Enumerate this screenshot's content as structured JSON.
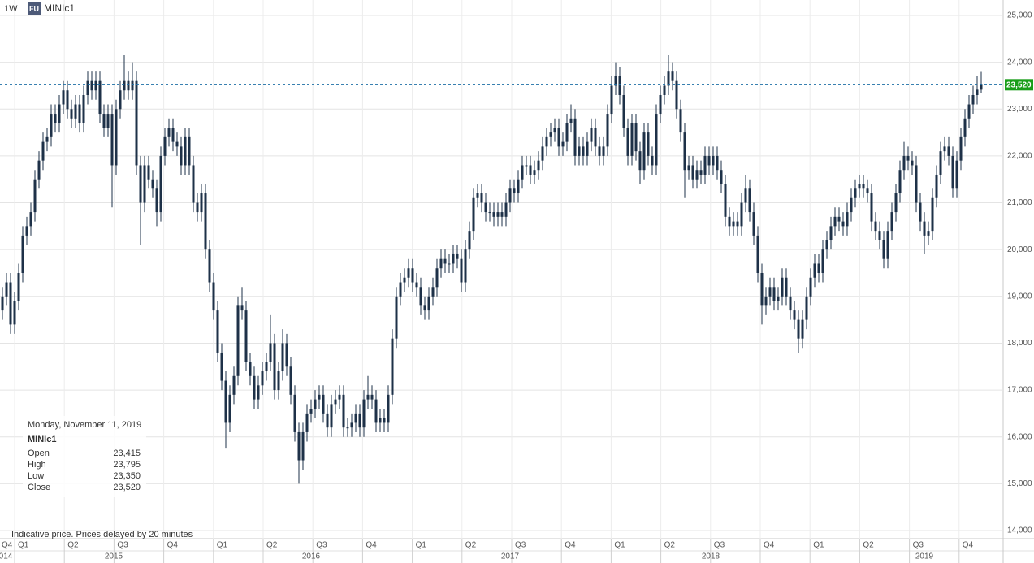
{
  "chart_data": {
    "type": "candlestick",
    "header": {
      "interval": "1W",
      "badge": "FU",
      "symbol": "MINIc1"
    },
    "note": "Indicative price. Prices delayed by 20 minutes",
    "color": "#1e3148",
    "grid": true,
    "ylim": [
      13826,
      25330
    ],
    "yticks": [
      {
        "value": 14000,
        "label": "14,000"
      },
      {
        "value": 15000,
        "label": "15,000"
      },
      {
        "value": 16000,
        "label": "16,000"
      },
      {
        "value": 17000,
        "label": "17,000"
      },
      {
        "value": 18000,
        "label": "18,000"
      },
      {
        "value": 19000,
        "label": "19,000"
      },
      {
        "value": 20000,
        "label": "20,000"
      },
      {
        "value": 21000,
        "label": "21,000"
      },
      {
        "value": 22000,
        "label": "22,000"
      },
      {
        "value": 23000,
        "label": "23,000"
      },
      {
        "value": 24000,
        "label": "24,000"
      },
      {
        "value": 25000,
        "label": "25,000"
      }
    ],
    "xlim": [
      -0.6,
      246.4
    ],
    "xticks": [
      {
        "value": -1,
        "label": "Q4"
      },
      {
        "value": 3,
        "label": "Q1"
      },
      {
        "value": 15.24,
        "label": "Q2"
      },
      {
        "value": 27.48,
        "label": "Q3"
      },
      {
        "value": 39.72,
        "label": "Q4"
      },
      {
        "value": 51.96,
        "label": "Q1"
      },
      {
        "value": 64.2,
        "label": "Q2"
      },
      {
        "value": 76.44,
        "label": "Q3"
      },
      {
        "value": 88.68,
        "label": "Q4"
      },
      {
        "value": 100.92,
        "label": "Q1"
      },
      {
        "value": 113.16,
        "label": "Q2"
      },
      {
        "value": 125.4,
        "label": "Q3"
      },
      {
        "value": 137.64,
        "label": "Q4"
      },
      {
        "value": 149.88,
        "label": "Q1"
      },
      {
        "value": 162.12,
        "label": "Q2"
      },
      {
        "value": 174.36,
        "label": "Q3"
      },
      {
        "value": 186.6,
        "label": "Q4"
      },
      {
        "value": 198.84,
        "label": "Q1"
      },
      {
        "value": 211.08,
        "label": "Q2"
      },
      {
        "value": 223.32,
        "label": "Q3"
      },
      {
        "value": 235.56,
        "label": "Q4"
      }
    ],
    "year_ticks": [
      {
        "value": 0.8,
        "label": "014"
      },
      {
        "value": 27.4,
        "label": "2015"
      },
      {
        "value": 76,
        "label": "2016"
      },
      {
        "value": 125,
        "label": "2017"
      },
      {
        "value": 174.4,
        "label": "2018"
      },
      {
        "value": 227,
        "label": "2019"
      }
    ],
    "last_price": {
      "value": 23520,
      "label": "23,520",
      "color": "#1a9e1a"
    },
    "info": {
      "date": "Monday, November 11, 2019",
      "symbol": "MINIc1",
      "rows": [
        [
          "Open",
          "23,415"
        ],
        [
          "High",
          "23,795"
        ],
        [
          "Low",
          "23,350"
        ],
        [
          "Close",
          "23,520"
        ]
      ]
    },
    "open": [
      18700,
      19000,
      19300,
      18400,
      18900,
      19500,
      20300,
      20500,
      20800,
      21500,
      21900,
      22300,
      22400,
      22900,
      22700,
      23100,
      23400,
      23000,
      22800,
      23100,
      22700,
      23300,
      23600,
      23400,
      23600,
      22900,
      22600,
      22900,
      21800,
      23000,
      23400,
      23600,
      23400,
      23600,
      21800,
      21000,
      21800,
      21500,
      21300,
      20800,
      22000,
      22400,
      22600,
      22300,
      22200,
      21800,
      22400,
      21800,
      21000,
      20800,
      21200,
      20000,
      19300,
      18700,
      17800,
      17200,
      16300,
      16900,
      17300,
      18800,
      18700,
      17600,
      17300,
      16800,
      17100,
      17400,
      17600,
      18000,
      17000,
      17400,
      18000,
      17500,
      16900,
      16100,
      15500,
      16100,
      16500,
      16600,
      16800,
      16900,
      16500,
      16200,
      16700,
      16800,
      16900,
      16200,
      16200,
      16300,
      16500,
      16200,
      16800,
      16900,
      16800,
      16300,
      16400,
      16300,
      16900,
      18100,
      19000,
      19300,
      19400,
      19600,
      19300,
      19200,
      18800,
      18700,
      19000,
      19200,
      19600,
      19800,
      19700,
      19700,
      19900,
      19800,
      19300,
      20000,
      20400,
      21100,
      21200,
      21000,
      20800,
      20800,
      20700,
      20800,
      20700,
      21000,
      21300,
      21200,
      21500,
      21800,
      21800,
      21600,
      21700,
      21900,
      22200,
      22400,
      22500,
      22600,
      22200,
      22300,
      22700,
      22800,
      22000,
      22200,
      22000,
      22300,
      22600,
      22200,
      22000,
      22200,
      22900,
      23500,
      23700,
      23300,
      22600,
      22000,
      22700,
      22100,
      21700,
      22500,
      22000,
      21800,
      22900,
      23300,
      23500,
      23800,
      23600,
      23000,
      22500,
      21700,
      21800,
      21500,
      21700,
      21600,
      22000,
      21800,
      22000,
      21700,
      21400,
      20700,
      20500,
      20600,
      20500,
      21000,
      21300,
      20800,
      20300,
      19500,
      18800,
      19000,
      19200,
      18900,
      19000,
      19400,
      19000,
      18700,
      18500,
      18100,
      18500,
      19000,
      19400,
      19700,
      19500,
      20000,
      20200,
      20500,
      20700,
      20600,
      20500,
      20800,
      21100,
      21300,
      21400,
      21300,
      21200,
      20600,
      20400,
      20200,
      19800,
      20400,
      20800,
      21200,
      21700,
      22000,
      21900,
      21800,
      21000,
      20600,
      20300,
      20400,
      21100,
      21600,
      22100,
      22200,
      22000,
      21300,
      21900,
      22400,
      22800,
      23100,
      23300,
      23415
    ],
    "high": [
      19200,
      19500,
      19500,
      19100,
      19700,
      20500,
      20700,
      21000,
      21700,
      22100,
      22500,
      22600,
      23100,
      23100,
      23300,
      23600,
      23600,
      23200,
      23300,
      23300,
      23500,
      23800,
      23800,
      23800,
      23800,
      23100,
      23100,
      23100,
      23200,
      23600,
      24150,
      23800,
      24000,
      23800,
      22000,
      22000,
      22000,
      21700,
      21500,
      22200,
      22600,
      22800,
      22800,
      22500,
      22400,
      22600,
      22600,
      22000,
      21200,
      21400,
      21400,
      20200,
      19500,
      18900,
      18000,
      17400,
      17100,
      17500,
      19000,
      19200,
      18900,
      17800,
      17500,
      17300,
      17600,
      17800,
      18600,
      18200,
      17600,
      18300,
      18200,
      17700,
      17100,
      16300,
      16300,
      16700,
      16800,
      17000,
      17100,
      17100,
      16700,
      16900,
      17000,
      17100,
      17100,
      16400,
      16500,
      16700,
      16700,
      17000,
      17300,
      17100,
      17000,
      16600,
      16600,
      17100,
      18300,
      19200,
      19500,
      19600,
      19800,
      19800,
      19500,
      19400,
      19000,
      19200,
      19400,
      19800,
      20000,
      20000,
      19900,
      20100,
      20100,
      20000,
      20200,
      20600,
      21300,
      21400,
      21400,
      21200,
      21000,
      21000,
      21000,
      21000,
      21200,
      21500,
      21500,
      21700,
      22000,
      22000,
      22000,
      21900,
      22100,
      22400,
      22600,
      22700,
      22800,
      22800,
      22500,
      22900,
      23100,
      23000,
      22400,
      22400,
      22500,
      22800,
      22800,
      22400,
      22400,
      23100,
      23700,
      24000,
      23900,
      23500,
      22800,
      22900,
      22900,
      22300,
      22700,
      22700,
      22200,
      23100,
      23500,
      23700,
      24150,
      24000,
      23800,
      23200,
      22700,
      22000,
      22000,
      21900,
      21900,
      22200,
      22200,
      22200,
      22200,
      21900,
      21600,
      20900,
      20800,
      20800,
      21200,
      21600,
      21500,
      21000,
      20500,
      19700,
      19200,
      19400,
      19400,
      19200,
      19600,
      19600,
      19200,
      18900,
      18700,
      18700,
      19200,
      19600,
      19900,
      19900,
      20200,
      20400,
      20700,
      20900,
      20900,
      20800,
      21000,
      21300,
      21500,
      21600,
      21600,
      21500,
      21400,
      20800,
      20600,
      20400,
      20600,
      21000,
      21400,
      21900,
      22300,
      22200,
      22100,
      22000,
      21200,
      20800,
      20600,
      21300,
      21800,
      22300,
      22400,
      22400,
      22200,
      22100,
      22600,
      23000,
      23300,
      23500,
      23700,
      23795
    ],
    "low": [
      18500,
      18800,
      18200,
      18200,
      18700,
      19300,
      20100,
      20300,
      20600,
      21300,
      21700,
      22100,
      22200,
      22500,
      22500,
      22900,
      22800,
      22600,
      22600,
      22500,
      22500,
      23100,
      23200,
      23200,
      22700,
      22400,
      22400,
      20900,
      21600,
      22800,
      23200,
      23200,
      23200,
      21600,
      20100,
      20800,
      21300,
      21100,
      20500,
      20600,
      21800,
      22200,
      22100,
      22000,
      21600,
      21600,
      21600,
      20800,
      20600,
      20600,
      19800,
      19100,
      18500,
      17600,
      17000,
      15750,
      16100,
      16700,
      17100,
      18500,
      17400,
      17100,
      16600,
      16600,
      16900,
      17200,
      17400,
      16800,
      16800,
      17200,
      17300,
      16700,
      15900,
      15000,
      15300,
      15900,
      16300,
      16400,
      16600,
      16300,
      16000,
      16000,
      16500,
      16600,
      16000,
      16000,
      16000,
      16100,
      16000,
      16000,
      16600,
      16600,
      16100,
      16100,
      16100,
      16100,
      16700,
      17900,
      18800,
      19100,
      19200,
      19100,
      19000,
      18600,
      18500,
      18500,
      18800,
      19000,
      19400,
      19500,
      19500,
      19500,
      19600,
      19100,
      19100,
      19800,
      20200,
      20900,
      20800,
      20600,
      20600,
      20500,
      20500,
      20500,
      20500,
      20800,
      21000,
      21000,
      21300,
      21600,
      21400,
      21400,
      21500,
      21700,
      22000,
      22200,
      22300,
      22000,
      22000,
      22100,
      22500,
      21800,
      21800,
      21800,
      21800,
      22100,
      22000,
      21800,
      21800,
      22000,
      22700,
      23300,
      23100,
      22400,
      21800,
      21800,
      21900,
      21400,
      21500,
      21800,
      21600,
      21600,
      22700,
      23100,
      23300,
      23400,
      22800,
      22300,
      21100,
      21500,
      21300,
      21300,
      21400,
      21400,
      21600,
      21600,
      21500,
      21200,
      20500,
      20300,
      20300,
      20300,
      20300,
      20800,
      20600,
      20100,
      19300,
      18400,
      18600,
      18800,
      18700,
      18700,
      18800,
      18800,
      18500,
      18300,
      17800,
      17900,
      18300,
      18800,
      19200,
      19300,
      19300,
      19800,
      20000,
      20300,
      20400,
      20300,
      20300,
      20600,
      20900,
      21100,
      21100,
      21000,
      20400,
      20200,
      20000,
      19600,
      19600,
      20200,
      20600,
      21000,
      21500,
      21700,
      21600,
      20800,
      20400,
      19900,
      20100,
      20200,
      20900,
      21400,
      21900,
      21800,
      21100,
      21100,
      21700,
      22200,
      22600,
      22900,
      23100,
      23350
    ],
    "close": [
      19000,
      19300,
      18400,
      18900,
      19500,
      20300,
      20500,
      20800,
      21500,
      21900,
      22300,
      22400,
      22900,
      22700,
      23100,
      23400,
      23000,
      22800,
      23100,
      22700,
      23300,
      23600,
      23400,
      23600,
      22900,
      22600,
      22900,
      21800,
      23000,
      23400,
      23600,
      23400,
      23600,
      21800,
      21000,
      21800,
      21500,
      21300,
      20800,
      22000,
      22400,
      22600,
      22300,
      22200,
      21800,
      22400,
      21800,
      21000,
      20800,
      21200,
      20000,
      19300,
      18700,
      17800,
      17200,
      16300,
      16900,
      17300,
      18800,
      18700,
      17600,
      17300,
      16800,
      17100,
      17400,
      17600,
      18000,
      17000,
      17400,
      18000,
      17500,
      16900,
      16100,
      15500,
      16100,
      16500,
      16600,
      16800,
      16900,
      16500,
      16200,
      16700,
      16800,
      16900,
      16200,
      16200,
      16300,
      16500,
      16200,
      16800,
      16900,
      16800,
      16300,
      16400,
      16300,
      16900,
      18100,
      19000,
      19300,
      19400,
      19600,
      19300,
      19200,
      18800,
      18700,
      19000,
      19200,
      19600,
      19800,
      19700,
      19700,
      19900,
      19800,
      19300,
      20000,
      20400,
      21100,
      21200,
      21000,
      20800,
      20800,
      20700,
      20800,
      20700,
      21000,
      21300,
      21200,
      21500,
      21800,
      21800,
      21600,
      21700,
      21900,
      22200,
      22400,
      22500,
      22600,
      22200,
      22300,
      22700,
      22800,
      22000,
      22200,
      22000,
      22300,
      22600,
      22200,
      22000,
      22200,
      22900,
      23500,
      23700,
      23300,
      22600,
      22000,
      22700,
      22100,
      21700,
      22500,
      22000,
      21800,
      22900,
      23300,
      23500,
      23800,
      23600,
      23000,
      22500,
      21700,
      21800,
      21500,
      21700,
      21600,
      22000,
      21800,
      22000,
      21700,
      21400,
      20700,
      20500,
      20600,
      20500,
      21000,
      21300,
      20800,
      20300,
      19500,
      18800,
      19000,
      19200,
      18900,
      19000,
      19400,
      19000,
      18700,
      18500,
      18100,
      18500,
      19000,
      19400,
      19700,
      19500,
      20000,
      20200,
      20500,
      20700,
      20600,
      20500,
      20800,
      21100,
      21300,
      21400,
      21300,
      21200,
      20600,
      20400,
      20200,
      19800,
      20400,
      20800,
      21200,
      21700,
      22000,
      21900,
      21800,
      21000,
      20600,
      20300,
      20400,
      21100,
      21600,
      22100,
      22200,
      22000,
      21300,
      21900,
      22400,
      22800,
      23100,
      23300,
      23415,
      23520
    ]
  }
}
